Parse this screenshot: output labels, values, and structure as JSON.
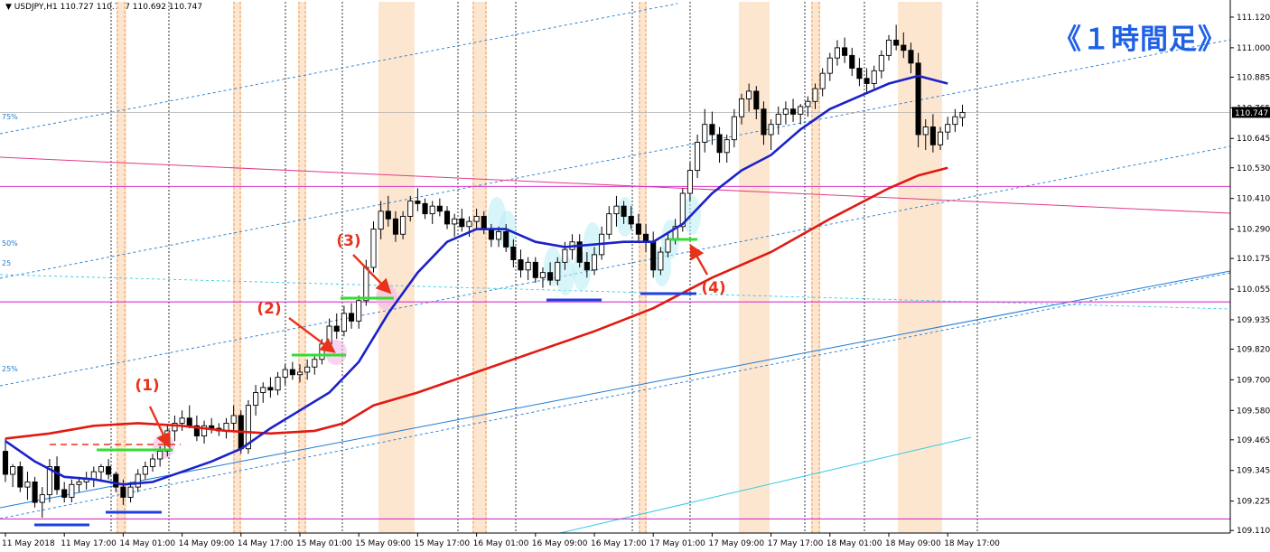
{
  "header": {
    "arrow": "▼",
    "symbol": "USDJPY,H1",
    "ohlc": "110.727 110.777 110.692 110.747"
  },
  "title": "《１時間足》",
  "colors": {
    "candle_body_bull": "#ffffff",
    "candle_body_bear": "#000000",
    "candle_outline": "#000000",
    "ma_fast": "#1a22c8",
    "ma_slow": "#e01a12",
    "session_band": "#fde6cf",
    "session_line": "#f08a3c",
    "magenta": "#d633c8",
    "channel_blue": "#1e7bd6",
    "channel_cyan": "#33c9e6",
    "marker_green": "#33dd33",
    "marker_blue": "#1f3fe0",
    "annotation_red": "#e8331b",
    "title_blue": "#1f61e6"
  },
  "chart_data": {
    "type": "candlestick",
    "symbol": "USDJPY",
    "timeframe": "H1",
    "ylim": [
      109.1,
      111.18
    ],
    "last_price": "110.747",
    "y_ticks": [
      "111.120",
      "111.000",
      "110.885",
      "110.765",
      "110.645",
      "110.530",
      "110.410",
      "110.290",
      "110.175",
      "110.055",
      "109.935",
      "109.820",
      "109.700",
      "109.580",
      "109.465",
      "109.345",
      "109.225",
      "109.110"
    ],
    "x_ticks": [
      {
        "bar": 0,
        "label": "11 May 2018"
      },
      {
        "bar": 8,
        "label": "11 May 17:00"
      },
      {
        "bar": 16,
        "label": "14 May 01:00"
      },
      {
        "bar": 24,
        "label": "14 May 09:00"
      },
      {
        "bar": 32,
        "label": "14 May 17:00"
      },
      {
        "bar": 40,
        "label": "15 May 01:00"
      },
      {
        "bar": 48,
        "label": "15 May 09:00"
      },
      {
        "bar": 56,
        "label": "15 May 17:00"
      },
      {
        "bar": 64,
        "label": "16 May 01:00"
      },
      {
        "bar": 72,
        "label": "16 May 09:00"
      },
      {
        "bar": 80,
        "label": "16 May 17:00"
      },
      {
        "bar": 88,
        "label": "17 May 01:00"
      },
      {
        "bar": 96,
        "label": "17 May 09:00"
      },
      {
        "bar": 104,
        "label": "17 May 17:00"
      },
      {
        "bar": 112,
        "label": "18 May 01:00"
      },
      {
        "bar": 120,
        "label": "18 May 09:00"
      },
      {
        "bar": 128,
        "label": "18 May 17:00"
      }
    ],
    "candles": [
      {
        "o": 109.42,
        "h": 109.47,
        "l": 109.3,
        "c": 109.33
      },
      {
        "o": 109.33,
        "h": 109.37,
        "l": 109.28,
        "c": 109.36
      },
      {
        "o": 109.36,
        "h": 109.38,
        "l": 109.26,
        "c": 109.28
      },
      {
        "o": 109.28,
        "h": 109.34,
        "l": 109.23,
        "c": 109.3
      },
      {
        "o": 109.3,
        "h": 109.32,
        "l": 109.2,
        "c": 109.22
      },
      {
        "o": 109.22,
        "h": 109.28,
        "l": 109.16,
        "c": 109.25
      },
      {
        "o": 109.25,
        "h": 109.39,
        "l": 109.22,
        "c": 109.36
      },
      {
        "o": 109.36,
        "h": 109.4,
        "l": 109.25,
        "c": 109.27
      },
      {
        "o": 109.27,
        "h": 109.3,
        "l": 109.22,
        "c": 109.24
      },
      {
        "o": 109.24,
        "h": 109.31,
        "l": 109.22,
        "c": 109.29
      },
      {
        "o": 109.29,
        "h": 109.32,
        "l": 109.26,
        "c": 109.3
      },
      {
        "o": 109.3,
        "h": 109.34,
        "l": 109.27,
        "c": 109.31
      },
      {
        "o": 109.31,
        "h": 109.36,
        "l": 109.28,
        "c": 109.34
      },
      {
        "o": 109.34,
        "h": 109.37,
        "l": 109.3,
        "c": 109.36
      },
      {
        "o": 109.36,
        "h": 109.39,
        "l": 109.31,
        "c": 109.33
      },
      {
        "o": 109.33,
        "h": 109.34,
        "l": 109.26,
        "c": 109.28
      },
      {
        "o": 109.28,
        "h": 109.31,
        "l": 109.21,
        "c": 109.24
      },
      {
        "o": 109.24,
        "h": 109.3,
        "l": 109.22,
        "c": 109.28
      },
      {
        "o": 109.28,
        "h": 109.35,
        "l": 109.26,
        "c": 109.33
      },
      {
        "o": 109.33,
        "h": 109.38,
        "l": 109.31,
        "c": 109.36
      },
      {
        "o": 109.36,
        "h": 109.41,
        "l": 109.34,
        "c": 109.39
      },
      {
        "o": 109.39,
        "h": 109.44,
        "l": 109.36,
        "c": 109.42
      },
      {
        "o": 109.42,
        "h": 109.52,
        "l": 109.4,
        "c": 109.5
      },
      {
        "o": 109.5,
        "h": 109.56,
        "l": 109.46,
        "c": 109.53
      },
      {
        "o": 109.53,
        "h": 109.58,
        "l": 109.5,
        "c": 109.55
      },
      {
        "o": 109.55,
        "h": 109.6,
        "l": 109.51,
        "c": 109.52
      },
      {
        "o": 109.52,
        "h": 109.56,
        "l": 109.46,
        "c": 109.48
      },
      {
        "o": 109.48,
        "h": 109.54,
        "l": 109.45,
        "c": 109.52
      },
      {
        "o": 109.52,
        "h": 109.55,
        "l": 109.49,
        "c": 109.51
      },
      {
        "o": 109.51,
        "h": 109.53,
        "l": 109.48,
        "c": 109.5
      },
      {
        "o": 109.5,
        "h": 109.55,
        "l": 109.47,
        "c": 109.53
      },
      {
        "o": 109.53,
        "h": 109.6,
        "l": 109.5,
        "c": 109.56
      },
      {
        "o": 109.56,
        "h": 109.58,
        "l": 109.41,
        "c": 109.43
      },
      {
        "o": 109.43,
        "h": 109.62,
        "l": 109.41,
        "c": 109.6
      },
      {
        "o": 109.6,
        "h": 109.68,
        "l": 109.56,
        "c": 109.65
      },
      {
        "o": 109.65,
        "h": 109.69,
        "l": 109.61,
        "c": 109.67
      },
      {
        "o": 109.67,
        "h": 109.71,
        "l": 109.63,
        "c": 109.66
      },
      {
        "o": 109.66,
        "h": 109.73,
        "l": 109.64,
        "c": 109.71
      },
      {
        "o": 109.71,
        "h": 109.76,
        "l": 109.68,
        "c": 109.74
      },
      {
        "o": 109.74,
        "h": 109.77,
        "l": 109.7,
        "c": 109.72
      },
      {
        "o": 109.72,
        "h": 109.76,
        "l": 109.69,
        "c": 109.73
      },
      {
        "o": 109.73,
        "h": 109.78,
        "l": 109.7,
        "c": 109.75
      },
      {
        "o": 109.75,
        "h": 109.8,
        "l": 109.72,
        "c": 109.78
      },
      {
        "o": 109.78,
        "h": 109.86,
        "l": 109.76,
        "c": 109.84
      },
      {
        "o": 109.84,
        "h": 109.94,
        "l": 109.82,
        "c": 109.91
      },
      {
        "o": 109.91,
        "h": 109.96,
        "l": 109.86,
        "c": 109.89
      },
      {
        "o": 109.89,
        "h": 109.99,
        "l": 109.87,
        "c": 109.96
      },
      {
        "o": 109.96,
        "h": 110.0,
        "l": 109.9,
        "c": 109.93
      },
      {
        "o": 109.93,
        "h": 110.03,
        "l": 109.9,
        "c": 110.01
      },
      {
        "o": 110.01,
        "h": 110.17,
        "l": 109.99,
        "c": 110.14
      },
      {
        "o": 110.14,
        "h": 110.32,
        "l": 110.12,
        "c": 110.29
      },
      {
        "o": 110.29,
        "h": 110.4,
        "l": 110.25,
        "c": 110.36
      },
      {
        "o": 110.36,
        "h": 110.42,
        "l": 110.3,
        "c": 110.33
      },
      {
        "o": 110.33,
        "h": 110.36,
        "l": 110.24,
        "c": 110.27
      },
      {
        "o": 110.27,
        "h": 110.36,
        "l": 110.25,
        "c": 110.34
      },
      {
        "o": 110.34,
        "h": 110.42,
        "l": 110.32,
        "c": 110.4
      },
      {
        "o": 110.4,
        "h": 110.45,
        "l": 110.36,
        "c": 110.39
      },
      {
        "o": 110.39,
        "h": 110.41,
        "l": 110.33,
        "c": 110.35
      },
      {
        "o": 110.35,
        "h": 110.4,
        "l": 110.31,
        "c": 110.38
      },
      {
        "o": 110.38,
        "h": 110.41,
        "l": 110.34,
        "c": 110.36
      },
      {
        "o": 110.36,
        "h": 110.38,
        "l": 110.29,
        "c": 110.31
      },
      {
        "o": 110.31,
        "h": 110.35,
        "l": 110.26,
        "c": 110.33
      },
      {
        "o": 110.33,
        "h": 110.37,
        "l": 110.28,
        "c": 110.3
      },
      {
        "o": 110.3,
        "h": 110.34,
        "l": 110.26,
        "c": 110.32
      },
      {
        "o": 110.32,
        "h": 110.37,
        "l": 110.29,
        "c": 110.34
      },
      {
        "o": 110.34,
        "h": 110.36,
        "l": 110.27,
        "c": 110.29
      },
      {
        "o": 110.29,
        "h": 110.31,
        "l": 110.22,
        "c": 110.25
      },
      {
        "o": 110.25,
        "h": 110.3,
        "l": 110.22,
        "c": 110.28
      },
      {
        "o": 110.28,
        "h": 110.31,
        "l": 110.2,
        "c": 110.22
      },
      {
        "o": 110.22,
        "h": 110.25,
        "l": 110.14,
        "c": 110.17
      },
      {
        "o": 110.17,
        "h": 110.21,
        "l": 110.1,
        "c": 110.13
      },
      {
        "o": 110.13,
        "h": 110.18,
        "l": 110.09,
        "c": 110.16
      },
      {
        "o": 110.16,
        "h": 110.18,
        "l": 110.08,
        "c": 110.1
      },
      {
        "o": 110.1,
        "h": 110.14,
        "l": 110.06,
        "c": 110.12
      },
      {
        "o": 110.12,
        "h": 110.16,
        "l": 110.07,
        "c": 110.09
      },
      {
        "o": 110.09,
        "h": 110.18,
        "l": 110.07,
        "c": 110.16
      },
      {
        "o": 110.16,
        "h": 110.24,
        "l": 110.13,
        "c": 110.21
      },
      {
        "o": 110.21,
        "h": 110.27,
        "l": 110.17,
        "c": 110.24
      },
      {
        "o": 110.24,
        "h": 110.27,
        "l": 110.14,
        "c": 110.16
      },
      {
        "o": 110.16,
        "h": 110.2,
        "l": 110.1,
        "c": 110.13
      },
      {
        "o": 110.13,
        "h": 110.22,
        "l": 110.11,
        "c": 110.19
      },
      {
        "o": 110.19,
        "h": 110.3,
        "l": 110.17,
        "c": 110.27
      },
      {
        "o": 110.27,
        "h": 110.38,
        "l": 110.25,
        "c": 110.35
      },
      {
        "o": 110.35,
        "h": 110.42,
        "l": 110.3,
        "c": 110.38
      },
      {
        "o": 110.38,
        "h": 110.4,
        "l": 110.31,
        "c": 110.34
      },
      {
        "o": 110.34,
        "h": 110.38,
        "l": 110.29,
        "c": 110.31
      },
      {
        "o": 110.31,
        "h": 110.35,
        "l": 110.24,
        "c": 110.27
      },
      {
        "o": 110.27,
        "h": 110.31,
        "l": 110.2,
        "c": 110.24
      },
      {
        "o": 110.24,
        "h": 110.28,
        "l": 110.1,
        "c": 110.13
      },
      {
        "o": 110.13,
        "h": 110.22,
        "l": 110.11,
        "c": 110.2
      },
      {
        "o": 110.2,
        "h": 110.28,
        "l": 110.18,
        "c": 110.25
      },
      {
        "o": 110.25,
        "h": 110.33,
        "l": 110.23,
        "c": 110.3
      },
      {
        "o": 110.3,
        "h": 110.45,
        "l": 110.28,
        "c": 110.43
      },
      {
        "o": 110.43,
        "h": 110.55,
        "l": 110.4,
        "c": 110.52
      },
      {
        "o": 110.52,
        "h": 110.66,
        "l": 110.49,
        "c": 110.63
      },
      {
        "o": 110.63,
        "h": 110.76,
        "l": 110.59,
        "c": 110.7
      },
      {
        "o": 110.7,
        "h": 110.75,
        "l": 110.62,
        "c": 110.66
      },
      {
        "o": 110.66,
        "h": 110.69,
        "l": 110.55,
        "c": 110.59
      },
      {
        "o": 110.59,
        "h": 110.66,
        "l": 110.55,
        "c": 110.64
      },
      {
        "o": 110.64,
        "h": 110.76,
        "l": 110.61,
        "c": 110.73
      },
      {
        "o": 110.73,
        "h": 110.82,
        "l": 110.7,
        "c": 110.8
      },
      {
        "o": 110.8,
        "h": 110.86,
        "l": 110.75,
        "c": 110.83
      },
      {
        "o": 110.83,
        "h": 110.85,
        "l": 110.72,
        "c": 110.76
      },
      {
        "o": 110.76,
        "h": 110.79,
        "l": 110.62,
        "c": 110.66
      },
      {
        "o": 110.66,
        "h": 110.72,
        "l": 110.6,
        "c": 110.7
      },
      {
        "o": 110.7,
        "h": 110.77,
        "l": 110.66,
        "c": 110.74
      },
      {
        "o": 110.74,
        "h": 110.79,
        "l": 110.7,
        "c": 110.76
      },
      {
        "o": 110.76,
        "h": 110.8,
        "l": 110.71,
        "c": 110.74
      },
      {
        "o": 110.74,
        "h": 110.78,
        "l": 110.7,
        "c": 110.77
      },
      {
        "o": 110.77,
        "h": 110.81,
        "l": 110.73,
        "c": 110.79
      },
      {
        "o": 110.79,
        "h": 110.86,
        "l": 110.76,
        "c": 110.84
      },
      {
        "o": 110.84,
        "h": 110.92,
        "l": 110.81,
        "c": 110.9
      },
      {
        "o": 110.9,
        "h": 110.98,
        "l": 110.87,
        "c": 110.96
      },
      {
        "o": 110.96,
        "h": 111.03,
        "l": 110.93,
        "c": 111.0
      },
      {
        "o": 111.0,
        "h": 111.04,
        "l": 110.94,
        "c": 110.97
      },
      {
        "o": 110.97,
        "h": 111.0,
        "l": 110.89,
        "c": 110.92
      },
      {
        "o": 110.92,
        "h": 110.96,
        "l": 110.85,
        "c": 110.88
      },
      {
        "o": 110.88,
        "h": 110.92,
        "l": 110.82,
        "c": 110.86
      },
      {
        "o": 110.86,
        "h": 110.93,
        "l": 110.84,
        "c": 110.91
      },
      {
        "o": 110.91,
        "h": 110.99,
        "l": 110.88,
        "c": 110.97
      },
      {
        "o": 110.97,
        "h": 111.05,
        "l": 110.95,
        "c": 111.03
      },
      {
        "o": 111.03,
        "h": 111.09,
        "l": 110.99,
        "c": 111.01
      },
      {
        "o": 111.01,
        "h": 111.06,
        "l": 110.96,
        "c": 110.99
      },
      {
        "o": 110.99,
        "h": 111.02,
        "l": 110.9,
        "c": 110.94
      },
      {
        "o": 110.94,
        "h": 110.98,
        "l": 110.61,
        "c": 110.66
      },
      {
        "o": 110.66,
        "h": 110.72,
        "l": 110.6,
        "c": 110.69
      },
      {
        "o": 110.69,
        "h": 110.74,
        "l": 110.59,
        "c": 110.62
      },
      {
        "o": 110.62,
        "h": 110.69,
        "l": 110.6,
        "c": 110.67
      },
      {
        "o": 110.67,
        "h": 110.73,
        "l": 110.64,
        "c": 110.7
      },
      {
        "o": 110.7,
        "h": 110.76,
        "l": 110.67,
        "c": 110.73
      },
      {
        "o": 110.727,
        "h": 110.777,
        "l": 110.692,
        "c": 110.747
      }
    ],
    "ma_fast": [
      [
        0,
        109.46
      ],
      [
        4,
        109.38
      ],
      [
        8,
        109.32
      ],
      [
        12,
        109.31
      ],
      [
        16,
        109.29
      ],
      [
        20,
        109.3
      ],
      [
        24,
        109.34
      ],
      [
        28,
        109.38
      ],
      [
        32,
        109.43
      ],
      [
        36,
        109.51
      ],
      [
        40,
        109.58
      ],
      [
        44,
        109.65
      ],
      [
        48,
        109.77
      ],
      [
        52,
        109.96
      ],
      [
        56,
        110.12
      ],
      [
        60,
        110.24
      ],
      [
        64,
        110.29
      ],
      [
        68,
        110.29
      ],
      [
        72,
        110.24
      ],
      [
        76,
        110.22
      ],
      [
        80,
        110.23
      ],
      [
        84,
        110.24
      ],
      [
        88,
        110.24
      ],
      [
        92,
        110.31
      ],
      [
        96,
        110.43
      ],
      [
        100,
        110.52
      ],
      [
        104,
        110.58
      ],
      [
        108,
        110.68
      ],
      [
        112,
        110.76
      ],
      [
        116,
        110.81
      ],
      [
        120,
        110.86
      ],
      [
        124,
        110.89
      ],
      [
        128,
        110.86
      ]
    ],
    "ma_slow": [
      [
        0,
        109.47
      ],
      [
        6,
        109.49
      ],
      [
        12,
        109.52
      ],
      [
        18,
        109.53
      ],
      [
        24,
        109.52
      ],
      [
        30,
        109.5
      ],
      [
        36,
        109.49
      ],
      [
        42,
        109.5
      ],
      [
        46,
        109.53
      ],
      [
        50,
        109.6
      ],
      [
        56,
        109.65
      ],
      [
        64,
        109.73
      ],
      [
        72,
        109.81
      ],
      [
        80,
        109.89
      ],
      [
        88,
        109.98
      ],
      [
        96,
        110.1
      ],
      [
        104,
        110.2
      ],
      [
        112,
        110.33
      ],
      [
        120,
        110.45
      ],
      [
        124,
        110.5
      ],
      [
        128,
        110.53
      ]
    ],
    "horizontal_levels": [
      110.457,
      110.005,
      109.155
    ],
    "axis_level_marks": [
      "75%",
      "50%",
      "25",
      "25%"
    ],
    "annotations": [
      "(1)",
      "(2)",
      "(3)",
      "(4)"
    ]
  }
}
